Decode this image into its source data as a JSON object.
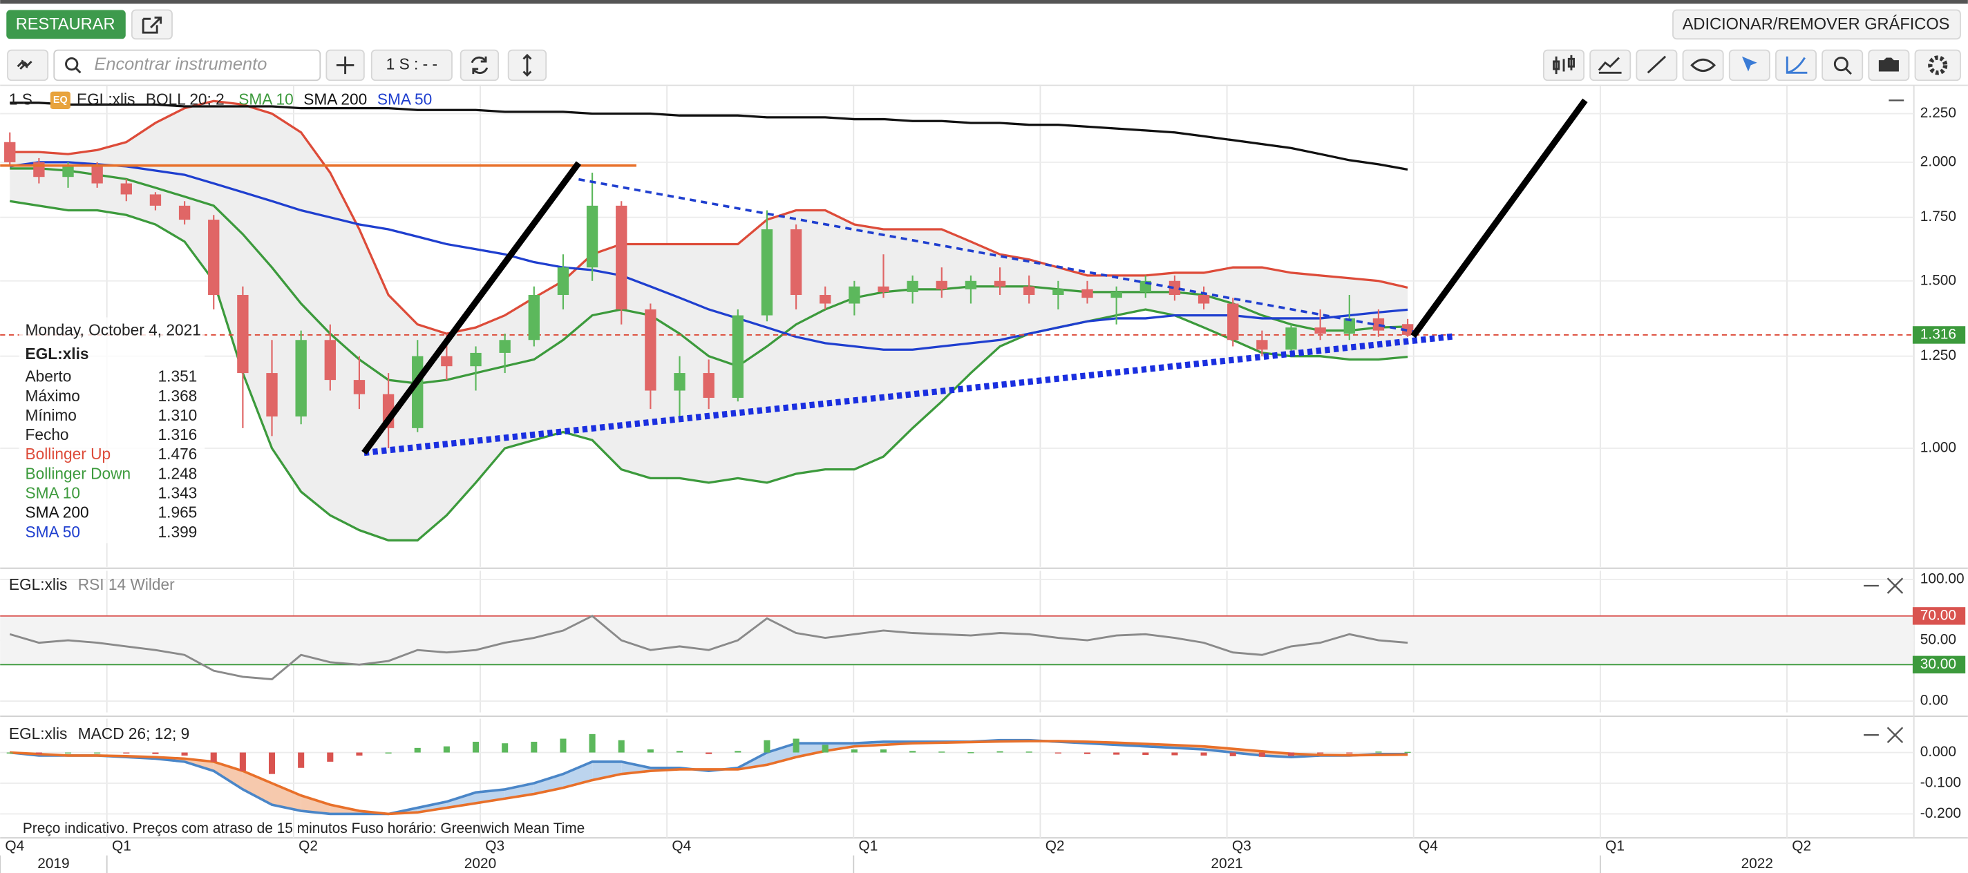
{
  "toolbar": {
    "restore": "RESTAURAR",
    "add_remove": "ADICIONAR/REMOVER GRÁFICOS",
    "search_placeholder": "Encontrar instrumento",
    "interval": "1 S : - -"
  },
  "chart_data": [
    {
      "type": "candlestick",
      "interval": "1 S",
      "badge": "EQ",
      "instrument": "EGL:xlis",
      "indicator": "BOLL 20; 2",
      "x": [
        2019.87,
        2019.909,
        2019.948,
        2019.987,
        2020.026,
        2020.065,
        2020.104,
        2020.143,
        2020.182,
        2020.221,
        2020.26,
        2020.299,
        2020.338,
        2020.377,
        2020.416,
        2020.455,
        2020.494,
        2020.533,
        2020.572,
        2020.611,
        2020.65,
        2020.689,
        2020.728,
        2020.767,
        2020.806,
        2020.845,
        2020.884,
        2020.923,
        2020.962,
        2021.001,
        2021.04,
        2021.079,
        2021.118,
        2021.157,
        2021.196,
        2021.235,
        2021.274,
        2021.313,
        2021.352,
        2021.391,
        2021.43,
        2021.469,
        2021.508,
        2021.547,
        2021.586,
        2021.625,
        2021.664,
        2021.703,
        2021.742
      ],
      "open": [
        2.1,
        2.0,
        1.93,
        1.98,
        1.9,
        1.85,
        1.8,
        1.74,
        1.45,
        1.2,
        1.08,
        1.3,
        1.18,
        1.14,
        1.05,
        1.25,
        1.22,
        1.26,
        1.3,
        1.45,
        1.55,
        1.8,
        1.4,
        1.15,
        1.2,
        1.13,
        1.38,
        1.7,
        1.45,
        1.42,
        1.48,
        1.46,
        1.5,
        1.47,
        1.5,
        1.48,
        1.45,
        1.47,
        1.44,
        1.46,
        1.5,
        1.45,
        1.42,
        1.3,
        1.27,
        1.34,
        1.32,
        1.37,
        1.351
      ],
      "high": [
        2.15,
        2.02,
        2.0,
        2.0,
        1.92,
        1.86,
        1.82,
        1.76,
        1.48,
        1.3,
        1.33,
        1.35,
        1.25,
        1.2,
        1.3,
        1.32,
        1.28,
        1.32,
        1.48,
        1.6,
        1.95,
        1.82,
        1.42,
        1.25,
        1.24,
        1.4,
        1.78,
        1.72,
        1.48,
        1.5,
        1.6,
        1.52,
        1.55,
        1.52,
        1.55,
        1.52,
        1.5,
        1.5,
        1.48,
        1.52,
        1.52,
        1.48,
        1.44,
        1.33,
        1.35,
        1.4,
        1.45,
        1.4,
        1.368
      ],
      "low": [
        1.98,
        1.9,
        1.88,
        1.88,
        1.82,
        1.78,
        1.72,
        1.4,
        1.05,
        1.03,
        1.06,
        1.15,
        1.1,
        1.0,
        1.04,
        1.18,
        1.15,
        1.2,
        1.28,
        1.4,
        1.5,
        1.35,
        1.1,
        1.08,
        1.1,
        1.12,
        1.36,
        1.4,
        1.4,
        1.38,
        1.44,
        1.42,
        1.44,
        1.42,
        1.45,
        1.42,
        1.4,
        1.42,
        1.35,
        1.44,
        1.43,
        1.4,
        1.28,
        1.25,
        1.26,
        1.3,
        1.3,
        1.31,
        1.31
      ],
      "close": [
        2.0,
        1.93,
        1.98,
        1.9,
        1.85,
        1.8,
        1.74,
        1.45,
        1.2,
        1.08,
        1.3,
        1.18,
        1.14,
        1.05,
        1.25,
        1.22,
        1.26,
        1.3,
        1.45,
        1.55,
        1.8,
        1.4,
        1.15,
        1.2,
        1.13,
        1.38,
        1.7,
        1.45,
        1.42,
        1.48,
        1.46,
        1.5,
        1.47,
        1.5,
        1.48,
        1.45,
        1.47,
        1.44,
        1.46,
        1.5,
        1.45,
        1.42,
        1.3,
        1.27,
        1.34,
        1.32,
        1.37,
        1.33,
        1.316
      ],
      "up_color": "#5cb85c",
      "down_color": "#e06666",
      "bands": {
        "fill": "#eeeeee",
        "upper": {
          "color": "#dd4b39",
          "values": [
            2.05,
            2.05,
            2.04,
            2.06,
            2.1,
            2.2,
            2.28,
            2.32,
            2.3,
            2.25,
            2.15,
            1.95,
            1.7,
            1.45,
            1.35,
            1.32,
            1.34,
            1.38,
            1.44,
            1.5,
            1.6,
            1.64,
            1.64,
            1.64,
            1.64,
            1.64,
            1.74,
            1.78,
            1.78,
            1.72,
            1.7,
            1.7,
            1.7,
            1.65,
            1.6,
            1.58,
            1.55,
            1.52,
            1.52,
            1.52,
            1.53,
            1.53,
            1.55,
            1.55,
            1.53,
            1.52,
            1.51,
            1.5,
            1.476
          ]
        },
        "lower": {
          "color": "#3c9a3c",
          "values": [
            1.82,
            1.8,
            1.78,
            1.78,
            1.76,
            1.72,
            1.65,
            1.5,
            1.2,
            1.0,
            0.9,
            0.85,
            0.82,
            0.8,
            0.8,
            0.85,
            0.92,
            1.0,
            1.02,
            1.04,
            1.02,
            0.95,
            0.93,
            0.93,
            0.92,
            0.93,
            0.92,
            0.94,
            0.95,
            0.95,
            0.98,
            1.05,
            1.12,
            1.2,
            1.28,
            1.32,
            1.34,
            1.36,
            1.38,
            1.4,
            1.38,
            1.34,
            1.3,
            1.26,
            1.25,
            1.25,
            1.24,
            1.24,
            1.248
          ]
        }
      },
      "series": [
        {
          "name": "SMA 10",
          "color": "#3c9a3c",
          "values": [
            1.97,
            1.97,
            1.96,
            1.94,
            1.92,
            1.88,
            1.84,
            1.8,
            1.68,
            1.55,
            1.42,
            1.32,
            1.24,
            1.18,
            1.17,
            1.18,
            1.2,
            1.22,
            1.24,
            1.3,
            1.38,
            1.4,
            1.38,
            1.32,
            1.25,
            1.22,
            1.28,
            1.35,
            1.4,
            1.44,
            1.46,
            1.47,
            1.47,
            1.48,
            1.48,
            1.48,
            1.47,
            1.46,
            1.46,
            1.46,
            1.46,
            1.45,
            1.42,
            1.38,
            1.35,
            1.33,
            1.33,
            1.34,
            1.343
          ]
        },
        {
          "name": "SMA 200",
          "color": "#111111",
          "values": [
            2.31,
            2.31,
            2.3,
            2.3,
            2.3,
            2.3,
            2.29,
            2.29,
            2.29,
            2.29,
            2.28,
            2.28,
            2.28,
            2.28,
            2.27,
            2.27,
            2.27,
            2.26,
            2.26,
            2.26,
            2.25,
            2.25,
            2.25,
            2.24,
            2.24,
            2.24,
            2.23,
            2.23,
            2.23,
            2.22,
            2.22,
            2.21,
            2.21,
            2.2,
            2.2,
            2.19,
            2.19,
            2.18,
            2.17,
            2.16,
            2.15,
            2.13,
            2.11,
            2.09,
            2.07,
            2.04,
            2.01,
            1.99,
            1.965
          ]
        },
        {
          "name": "SMA 50",
          "color": "#1f3fcf",
          "values": [
            1.98,
            2.0,
            2.0,
            1.99,
            1.98,
            1.96,
            1.94,
            1.9,
            1.86,
            1.82,
            1.78,
            1.75,
            1.72,
            1.7,
            1.67,
            1.64,
            1.62,
            1.6,
            1.57,
            1.55,
            1.54,
            1.52,
            1.48,
            1.44,
            1.4,
            1.37,
            1.34,
            1.31,
            1.29,
            1.28,
            1.27,
            1.27,
            1.28,
            1.29,
            1.3,
            1.32,
            1.34,
            1.36,
            1.37,
            1.37,
            1.38,
            1.38,
            1.38,
            1.37,
            1.37,
            1.37,
            1.38,
            1.39,
            1.399
          ]
        }
      ],
      "last_color": "#3c9a3c",
      "log": true,
      "grid": true,
      "ylim": [
        0.75,
        2.41
      ],
      "yticks": [
        {
          "value": 1.0,
          "label": "1.000"
        },
        {
          "value": 1.25,
          "label": "1.250"
        },
        {
          "value": 1.5,
          "label": "1.500"
        },
        {
          "value": 1.75,
          "label": "1.750"
        },
        {
          "value": 2.0,
          "label": "2.000"
        },
        {
          "value": 2.25,
          "label": "2.250"
        }
      ],
      "xlim": [
        2019.857,
        2022.42
      ],
      "xticks": [
        {
          "value": 2019.75,
          "label": "Q4"
        },
        {
          "value": 2020.0,
          "label": "Q1"
        },
        {
          "value": 2020.25,
          "label": "Q2"
        },
        {
          "value": 2020.5,
          "label": "Q3"
        },
        {
          "value": 2020.75,
          "label": "Q4"
        },
        {
          "value": 2021.0,
          "label": "Q1"
        },
        {
          "value": 2021.25,
          "label": "Q2"
        },
        {
          "value": 2021.5,
          "label": "Q3"
        },
        {
          "value": 2021.75,
          "label": "Q4"
        },
        {
          "value": 2022.0,
          "label": "Q1"
        },
        {
          "value": 2022.25,
          "label": "Q2"
        }
      ],
      "year_ticks": [
        2019,
        2020,
        2021,
        2022
      ]
    },
    {
      "type": "line",
      "instrument": "EGL:xlis",
      "indicator": "RSI 14 Wilder",
      "series": [
        {
          "color": "#8a8a8a",
          "values": [
            55,
            48,
            50,
            48,
            45,
            42,
            38,
            25,
            20,
            18,
            38,
            32,
            30,
            33,
            42,
            40,
            42,
            48,
            52,
            58,
            70,
            50,
            42,
            45,
            42,
            50,
            68,
            56,
            52,
            55,
            58,
            56,
            55,
            54,
            56,
            55,
            52,
            50,
            54,
            55,
            52,
            48,
            40,
            38,
            45,
            48,
            55,
            50,
            48
          ]
        }
      ],
      "levels": [
        {
          "value": 70,
          "color": "#d9534f"
        },
        {
          "value": 30,
          "color": "#3c9a3c"
        }
      ],
      "band_fill": "#f3f3f3",
      "ylim": [
        -9.3,
        107.2
      ],
      "yticks": [
        {
          "value": 0,
          "label": "0.00"
        },
        {
          "value": 30,
          "label": "30.00"
        },
        {
          "value": 50,
          "label": "50.00"
        },
        {
          "value": 70,
          "label": "70.00"
        },
        {
          "value": 100,
          "label": "100.00"
        }
      ]
    },
    {
      "type": "macd",
      "instrument": "EGL:xlis",
      "indicator": "MACD 26; 12; 9",
      "series": [
        {
          "color": "#4a86c8",
          "values": [
            0.0,
            -0.01,
            -0.01,
            -0.01,
            -0.015,
            -0.02,
            -0.03,
            -0.06,
            -0.12,
            -0.17,
            -0.19,
            -0.2,
            -0.2,
            -0.2,
            -0.18,
            -0.16,
            -0.13,
            -0.12,
            -0.1,
            -0.07,
            -0.03,
            -0.03,
            -0.05,
            -0.05,
            -0.06,
            -0.05,
            0.0,
            0.03,
            0.03,
            0.03,
            0.035,
            0.035,
            0.035,
            0.035,
            0.04,
            0.04,
            0.035,
            0.03,
            0.025,
            0.02,
            0.015,
            0.01,
            0.0,
            -0.01,
            -0.015,
            -0.01,
            -0.01,
            -0.005,
            -0.005
          ]
        },
        {
          "color": "#e8702a",
          "values": [
            0.0,
            -0.005,
            -0.01,
            -0.01,
            -0.012,
            -0.015,
            -0.02,
            -0.03,
            -0.06,
            -0.1,
            -0.14,
            -0.17,
            -0.19,
            -0.2,
            -0.195,
            -0.18,
            -0.165,
            -0.15,
            -0.135,
            -0.115,
            -0.09,
            -0.07,
            -0.06,
            -0.055,
            -0.055,
            -0.055,
            -0.04,
            -0.015,
            0.005,
            0.02,
            0.025,
            0.03,
            0.032,
            0.034,
            0.036,
            0.037,
            0.037,
            0.035,
            0.032,
            0.028,
            0.024,
            0.02,
            0.012,
            0.004,
            -0.004,
            -0.008,
            -0.009,
            -0.008,
            -0.007
          ]
        }
      ],
      "fill_above": "#bcd4ee",
      "fill_below": "#f6c9ad",
      "histogram": {
        "up_color": "#5cb85c",
        "down_color": "#d9534f",
        "values": [
          0,
          -0.005,
          0,
          0,
          -0.003,
          -0.005,
          -0.01,
          -0.03,
          -0.06,
          -0.07,
          -0.05,
          -0.03,
          -0.01,
          0,
          0.015,
          0.02,
          0.035,
          0.03,
          0.035,
          0.045,
          0.06,
          0.04,
          0.01,
          0.005,
          -0.005,
          0.005,
          0.04,
          0.045,
          0.025,
          0.01,
          0.01,
          0.005,
          0.003,
          0.001,
          0.004,
          0.003,
          -0.002,
          -0.005,
          -0.007,
          -0.008,
          -0.009,
          -0.01,
          -0.012,
          -0.014,
          -0.011,
          -0.002,
          -0.001,
          0.003,
          0.002
        ]
      },
      "ylim": [
        -0.278,
        0.11
      ],
      "yticks": [
        {
          "value": -0.2,
          "label": "-0.200"
        },
        {
          "value": -0.1,
          "label": "-0.100"
        },
        {
          "value": 0,
          "label": "0.000"
        }
      ]
    }
  ],
  "tooltip": {
    "date": "Monday, October 4, 2021",
    "instrument": "EGL:xlis",
    "rows": [
      {
        "label": "Aberto",
        "value": "1.351",
        "color": "#222222"
      },
      {
        "label": "Máximo",
        "value": "1.368",
        "color": "#222222"
      },
      {
        "label": "Mínimo",
        "value": "1.310",
        "color": "#222222"
      },
      {
        "label": "Fecho",
        "value": "1.316",
        "color": "#222222"
      },
      {
        "label": "Bollinger Up",
        "value": "1.476",
        "color": "#dd4b39"
      },
      {
        "label": "Bollinger Down",
        "value": "1.248",
        "color": "#3c9a3c"
      },
      {
        "label": "SMA 10",
        "value": "1.343",
        "color": "#3c9a3c"
      },
      {
        "label": "SMA 200",
        "value": "1.965",
        "color": "#111111"
      },
      {
        "label": "SMA 50",
        "value": "1.399",
        "color": "#1f3fcf"
      }
    ]
  },
  "footer": "Preço indicativo. Preços com atraso de 15 minutos   Fuso horário: Greenwich Mean Time"
}
